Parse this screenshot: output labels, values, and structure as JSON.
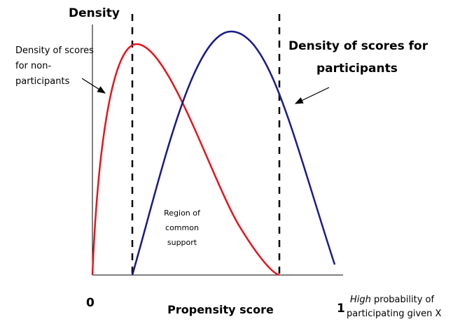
{
  "y_axis_label": "Density",
  "non_participants_label": [
    "Density of scores",
    "for non-",
    "participants"
  ],
  "participants_label": [
    "Density of scores for",
    "participants"
  ],
  "region_label": [
    "Region of",
    "common",
    "support"
  ],
  "x_axis_start": "0",
  "x_axis_label": "Propensity score",
  "x_axis_end": "1",
  "x_axis_end_note": {
    "emphasis": "High",
    "line1": " probability of",
    "line2": "participating given X"
  }
}
